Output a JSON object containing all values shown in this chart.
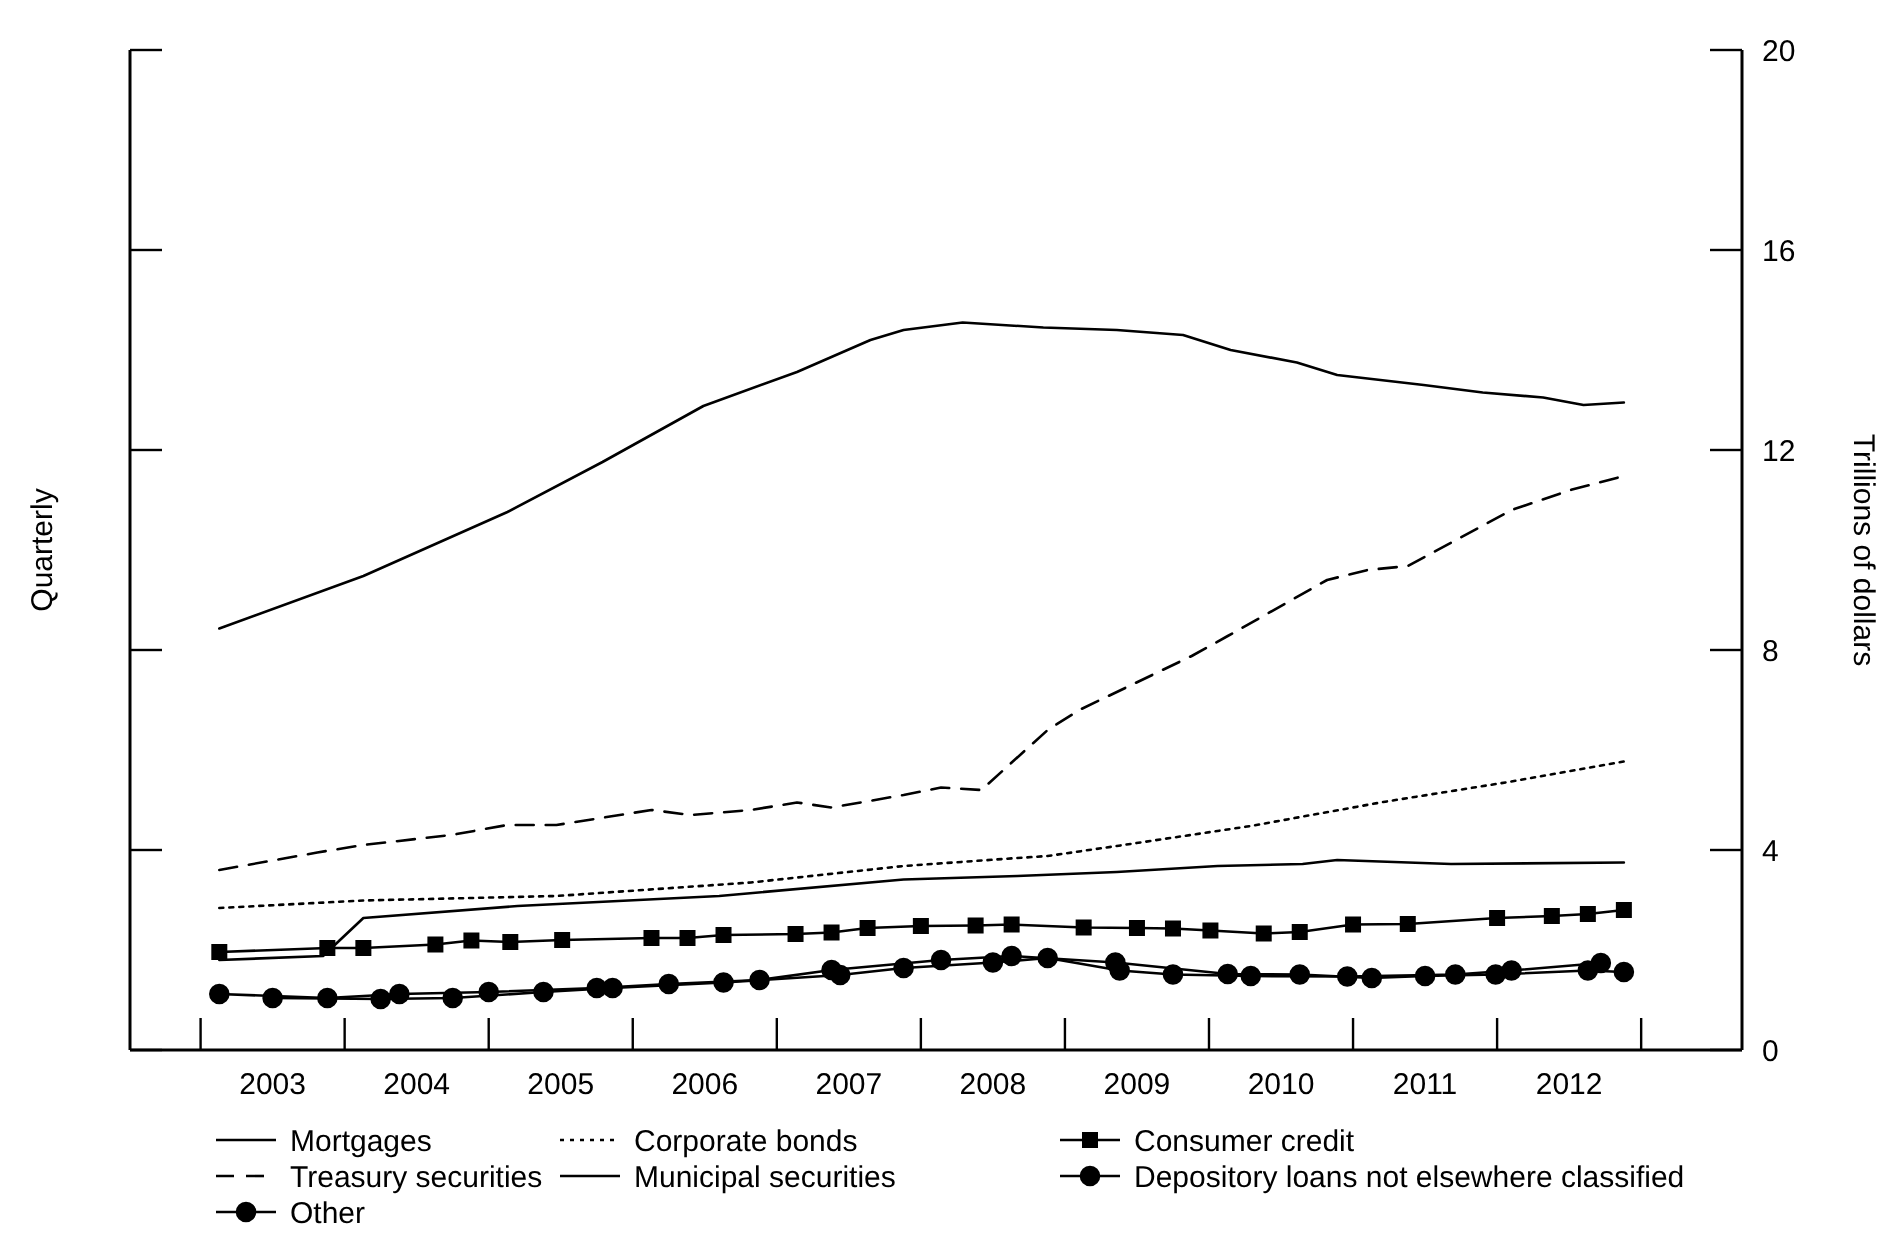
{
  "chart_data": {
    "type": "line",
    "ylabel": "Quarterly",
    "y2label": "Trillions of dollars",
    "xlim": [
      2002.51,
      2013.7
    ],
    "xticks": [
      {
        "value": 2003,
        "label": null
      },
      {
        "value": 2003.5,
        "label": "2003"
      },
      {
        "value": 2004,
        "label": null
      },
      {
        "value": 2004.5,
        "label": "2004"
      },
      {
        "value": 2005,
        "label": null
      },
      {
        "value": 2005.5,
        "label": "2005"
      },
      {
        "value": 2006,
        "label": null
      },
      {
        "value": 2006.5,
        "label": "2006"
      },
      {
        "value": 2007,
        "label": null
      },
      {
        "value": 2007.5,
        "label": "2007"
      },
      {
        "value": 2008,
        "label": null
      },
      {
        "value": 2008.5,
        "label": "2008"
      },
      {
        "value": 2009,
        "label": null
      },
      {
        "value": 2009.5,
        "label": "2009"
      },
      {
        "value": 2010,
        "label": null
      },
      {
        "value": 2010.5,
        "label": "2010"
      },
      {
        "value": 2011,
        "label": null
      },
      {
        "value": 2011.5,
        "label": "2011"
      },
      {
        "value": 2012,
        "label": null
      },
      {
        "value": 2012.5,
        "label": "2012"
      },
      {
        "value": 2013,
        "label": null
      }
    ],
    "ylim": [
      0,
      20
    ],
    "yticks": [
      0,
      4,
      8,
      12,
      16,
      20
    ],
    "grid": false,
    "legend": "bottom",
    "series": [
      {
        "name": "Mortgages",
        "color": "#000000",
        "line_style": "solid",
        "marker": "none",
        "x": [
          2003.13,
          2004.13,
          2005.13,
          2005.79,
          2006.49,
          2007.14,
          2007.65,
          2007.88,
          2008.29,
          2008.85,
          2009.36,
          2009.82,
          2010.15,
          2010.61,
          2010.89,
          2011.49,
          2011.9,
          2012.32,
          2012.6,
          2012.88
        ],
        "values": [
          8.43,
          9.48,
          10.76,
          11.76,
          12.88,
          13.56,
          14.2,
          14.4,
          14.55,
          14.45,
          14.4,
          14.3,
          14.0,
          13.75,
          13.5,
          13.3,
          13.15,
          13.05,
          12.9,
          12.95
        ]
      },
      {
        "name": "Treasury securities",
        "color": "#000000",
        "line_style": "dashed",
        "marker": "none",
        "x": [
          2003.13,
          2003.81,
          2004.13,
          2004.74,
          2005.13,
          2005.47,
          2006.13,
          2006.4,
          2006.82,
          2007.14,
          2007.38,
          2007.88,
          2008.14,
          2008.42,
          2008.88,
          2009.1,
          2009.88,
          2010.13,
          2010.82,
          2011.1,
          2011.38,
          2012.1,
          2012.51,
          2012.88
        ],
        "values": [
          3.6,
          3.95,
          4.1,
          4.3,
          4.5,
          4.5,
          4.8,
          4.7,
          4.8,
          4.95,
          4.85,
          5.1,
          5.25,
          5.2,
          6.4,
          6.8,
          7.88,
          8.28,
          9.4,
          9.6,
          9.68,
          10.8,
          11.2,
          11.48
        ]
      },
      {
        "name": "Corporate bonds",
        "color": "#000000",
        "line_style": "dotted",
        "marker": "none",
        "x": [
          2003.13,
          2004.13,
          2005.47,
          2006.82,
          2007.88,
          2008.67,
          2008.88,
          2009.36,
          2010.29,
          2011.21,
          2012.1,
          2012.88
        ],
        "values": [
          2.84,
          2.99,
          3.08,
          3.35,
          3.68,
          3.84,
          3.88,
          4.08,
          4.48,
          4.96,
          5.37,
          5.77
        ]
      },
      {
        "name": "Municipal securities",
        "color": "#000000",
        "line_style": "solid",
        "marker": "none",
        "x": [
          2003.13,
          2003.85,
          2004.13,
          2005.2,
          2006.6,
          2007.88,
          2008.67,
          2009.36,
          2010.06,
          2010.65,
          2010.89,
          2011.68,
          2012.88
        ],
        "values": [
          1.8,
          1.88,
          2.64,
          2.88,
          3.08,
          3.41,
          3.48,
          3.56,
          3.68,
          3.72,
          3.8,
          3.72,
          3.75
        ]
      },
      {
        "name": "Consumer credit",
        "color": "#000000",
        "line_style": "solid",
        "marker": "square",
        "x": [
          2003.13,
          2003.88,
          2004.13,
          2004.63,
          2004.88,
          2005.15,
          2005.51,
          2006.13,
          2006.38,
          2006.63,
          2007.13,
          2007.38,
          2007.63,
          2008.0,
          2008.38,
          2008.63,
          2009.13,
          2009.5,
          2009.75,
          2010.01,
          2010.38,
          2010.63,
          2011.0,
          2011.38,
          2012.0,
          2012.38,
          2012.63,
          2012.88
        ],
        "values": [
          1.96,
          2.04,
          2.04,
          2.11,
          2.19,
          2.16,
          2.2,
          2.24,
          2.24,
          2.3,
          2.32,
          2.35,
          2.44,
          2.48,
          2.49,
          2.51,
          2.45,
          2.44,
          2.43,
          2.39,
          2.33,
          2.36,
          2.51,
          2.52,
          2.64,
          2.68,
          2.72,
          2.8
        ]
      },
      {
        "name": "Depository loans not elsewhere classified",
        "color": "#000000",
        "line_style": "solid",
        "marker": "circle",
        "x": [
          2003.5,
          2004.25,
          2004.75,
          2005.38,
          2005.86,
          2006.63,
          2007.44,
          2007.88,
          2008.5,
          2008.88,
          2009.38,
          2009.75,
          2010.29,
          2010.96,
          2011.71,
          2012.1,
          2012.72
        ],
        "values": [
          1.04,
          1.02,
          1.04,
          1.16,
          1.24,
          1.35,
          1.5,
          1.64,
          1.75,
          1.84,
          1.59,
          1.51,
          1.48,
          1.47,
          1.51,
          1.59,
          1.74
        ]
      },
      {
        "name": "Other",
        "color": "#000000",
        "line_style": "solid",
        "marker": "circle",
        "x": [
          2003.13,
          2003.88,
          2004.38,
          2005.0,
          2005.75,
          2006.25,
          2006.88,
          2007.38,
          2008.14,
          2008.63,
          2009.35,
          2010.13,
          2010.63,
          2011.13,
          2011.5,
          2011.99,
          2012.63,
          2012.88
        ],
        "values": [
          1.12,
          1.04,
          1.12,
          1.16,
          1.24,
          1.32,
          1.4,
          1.6,
          1.8,
          1.88,
          1.75,
          1.52,
          1.51,
          1.44,
          1.48,
          1.51,
          1.59,
          1.56
        ]
      }
    ]
  }
}
